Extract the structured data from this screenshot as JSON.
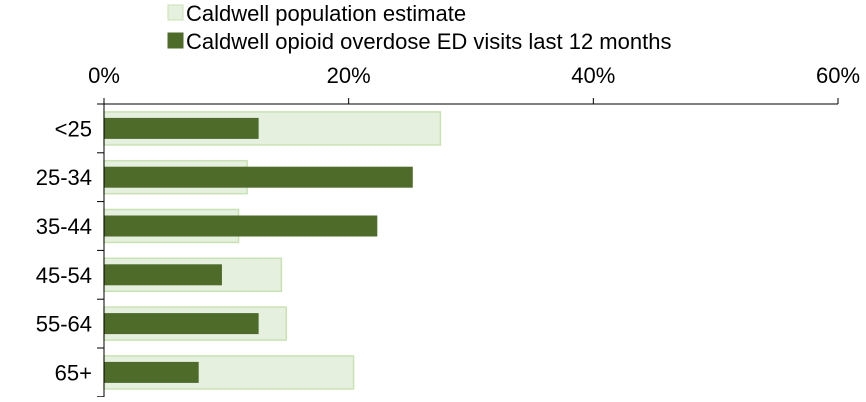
{
  "chart_data": {
    "type": "bar",
    "orientation": "horizontal",
    "categories": [
      "<25",
      "25-34",
      "35-44",
      "45-54",
      "55-64",
      "65+"
    ],
    "series": [
      {
        "name": "Caldwell population estimate",
        "values": [
          27.5,
          11.7,
          11.0,
          14.5,
          14.9,
          20.4
        ],
        "color": "#e6f0df",
        "stroke": "#c9e2b3"
      },
      {
        "name": "Caldwell opioid overdose ED visits last 12 months",
        "values": [
          12.6,
          25.2,
          22.3,
          9.6,
          12.6,
          7.7
        ],
        "color": "#4e6b2a",
        "stroke": "#4e6b2a"
      }
    ],
    "xaxis": {
      "range": [
        0,
        60
      ],
      "ticks": [
        0,
        20,
        40,
        60
      ],
      "tick_labels": [
        "0%",
        "20%",
        "40%",
        "60%"
      ],
      "position": "top"
    },
    "legend": {
      "position": "top"
    },
    "grid": false
  }
}
